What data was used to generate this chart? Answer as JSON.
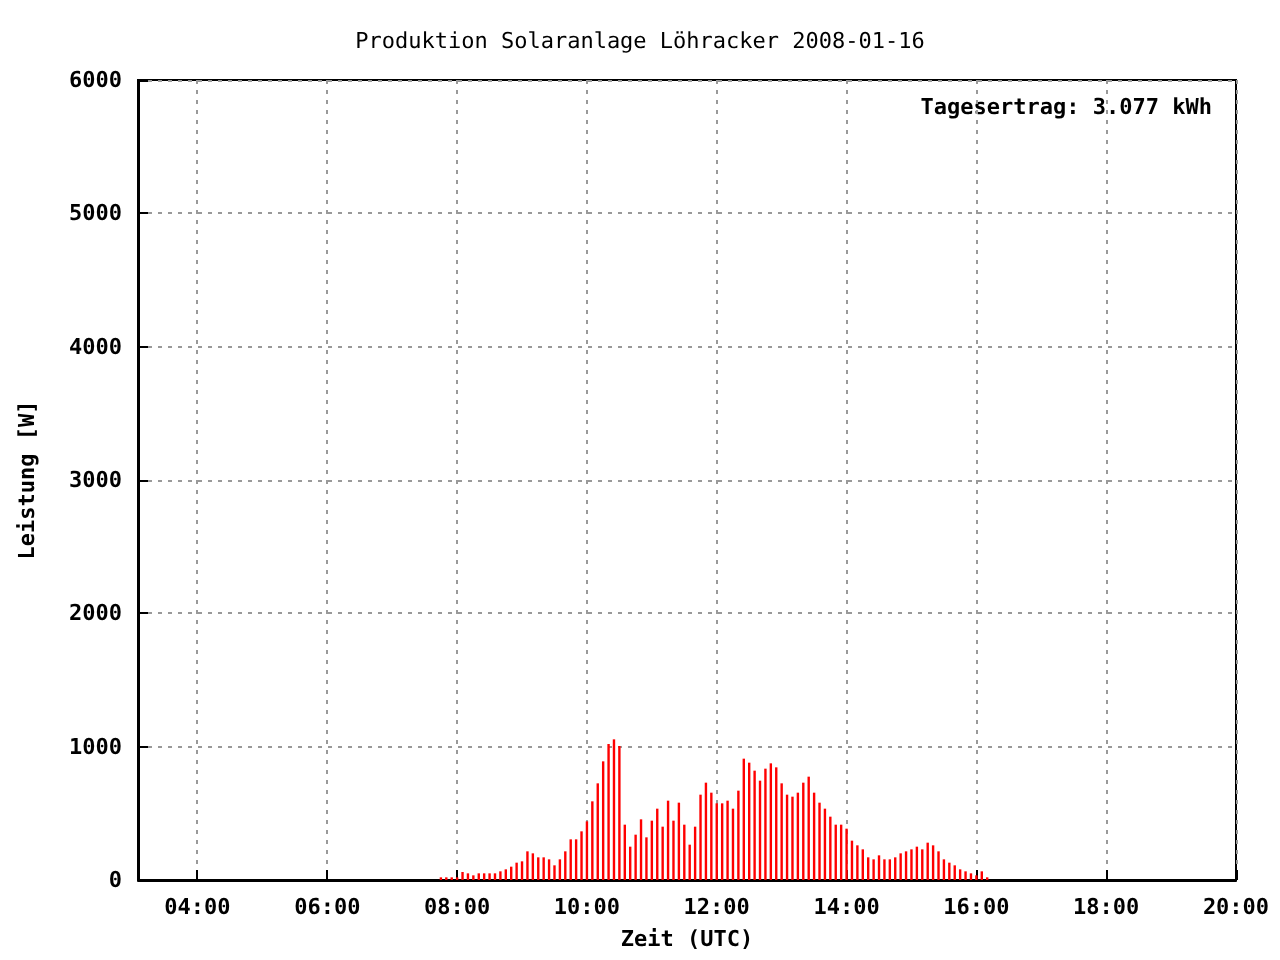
{
  "chart_data": {
    "type": "bar",
    "title": "Produktion Solaranlage Löhracker 2008-01-16",
    "xlabel": "Zeit (UTC)",
    "ylabel": "Leistung [W]",
    "annotations": [
      "Tagesertrag: 3.077 kWh"
    ],
    "x": [
      "2008-01-16T07:45",
      "2008-01-16T07:50",
      "2008-01-16T07:55",
      "2008-01-16T08:00",
      "2008-01-16T08:05",
      "2008-01-16T08:10",
      "2008-01-16T08:15",
      "2008-01-16T08:20",
      "2008-01-16T08:25",
      "2008-01-16T08:30",
      "2008-01-16T08:35",
      "2008-01-16T08:40",
      "2008-01-16T08:45",
      "2008-01-16T08:50",
      "2008-01-16T08:55",
      "2008-01-16T09:00",
      "2008-01-16T09:05",
      "2008-01-16T09:10",
      "2008-01-16T09:15",
      "2008-01-16T09:20",
      "2008-01-16T09:25",
      "2008-01-16T09:30",
      "2008-01-16T09:35",
      "2008-01-16T09:40",
      "2008-01-16T09:45",
      "2008-01-16T09:50",
      "2008-01-16T09:55",
      "2008-01-16T10:00",
      "2008-01-16T10:05",
      "2008-01-16T10:10",
      "2008-01-16T10:15",
      "2008-01-16T10:20",
      "2008-01-16T10:25",
      "2008-01-16T10:30",
      "2008-01-16T10:35",
      "2008-01-16T10:40",
      "2008-01-16T10:45",
      "2008-01-16T10:50",
      "2008-01-16T10:55",
      "2008-01-16T11:00",
      "2008-01-16T11:05",
      "2008-01-16T11:10",
      "2008-01-16T11:15",
      "2008-01-16T11:20",
      "2008-01-16T11:25",
      "2008-01-16T11:30",
      "2008-01-16T11:35",
      "2008-01-16T11:40",
      "2008-01-16T11:45",
      "2008-01-16T11:50",
      "2008-01-16T11:55",
      "2008-01-16T12:00",
      "2008-01-16T12:05",
      "2008-01-16T12:10",
      "2008-01-16T12:15",
      "2008-01-16T12:20",
      "2008-01-16T12:25",
      "2008-01-16T12:30",
      "2008-01-16T12:35",
      "2008-01-16T12:40",
      "2008-01-16T12:45",
      "2008-01-16T12:50",
      "2008-01-16T12:55",
      "2008-01-16T13:00",
      "2008-01-16T13:05",
      "2008-01-16T13:10",
      "2008-01-16T13:15",
      "2008-01-16T13:20",
      "2008-01-16T13:25",
      "2008-01-16T13:30",
      "2008-01-16T13:35",
      "2008-01-16T13:40",
      "2008-01-16T13:45",
      "2008-01-16T13:50",
      "2008-01-16T13:55",
      "2008-01-16T14:00",
      "2008-01-16T14:05",
      "2008-01-16T14:10",
      "2008-01-16T14:15",
      "2008-01-16T14:20",
      "2008-01-16T14:25",
      "2008-01-16T14:30",
      "2008-01-16T14:35",
      "2008-01-16T14:40",
      "2008-01-16T14:45",
      "2008-01-16T14:50",
      "2008-01-16T14:55",
      "2008-01-16T15:00",
      "2008-01-16T15:05",
      "2008-01-16T15:10",
      "2008-01-16T15:15",
      "2008-01-16T15:20",
      "2008-01-16T15:25",
      "2008-01-16T15:30",
      "2008-01-16T15:35",
      "2008-01-16T15:40",
      "2008-01-16T15:45",
      "2008-01-16T15:50",
      "2008-01-16T15:55",
      "2008-01-16T16:00",
      "2008-01-16T16:05",
      "2008-01-16T16:10"
    ],
    "values": [
      20,
      20,
      20,
      20,
      60,
      50,
      35,
      50,
      50,
      50,
      50,
      65,
      80,
      100,
      130,
      140,
      215,
      200,
      170,
      170,
      155,
      110,
      155,
      215,
      305,
      305,
      365,
      440,
      590,
      725,
      890,
      1020,
      1055,
      1005,
      415,
      250,
      340,
      455,
      320,
      445,
      535,
      400,
      595,
      445,
      580,
      415,
      265,
      400,
      640,
      730,
      655,
      575,
      575,
      595,
      535,
      670,
      910,
      880,
      820,
      745,
      835,
      875,
      845,
      725,
      640,
      625,
      655,
      730,
      775,
      655,
      580,
      535,
      475,
      415,
      415,
      385,
      295,
      260,
      230,
      170,
      155,
      185,
      155,
      155,
      170,
      200,
      215,
      230,
      250,
      230,
      280,
      260,
      215,
      155,
      130,
      110,
      80,
      65,
      50,
      35,
      65,
      20
    ],
    "color": "#ff0000",
    "xlim": [
      "2008-01-16T03:05",
      "2008-01-16T20:00"
    ],
    "xticks": [
      {
        "value": "2008-01-16T04:00",
        "label": "04:00"
      },
      {
        "value": "2008-01-16T06:00",
        "label": "06:00"
      },
      {
        "value": "2008-01-16T08:00",
        "label": "08:00"
      },
      {
        "value": "2008-01-16T10:00",
        "label": "10:00"
      },
      {
        "value": "2008-01-16T12:00",
        "label": "12:00"
      },
      {
        "value": "2008-01-16T14:00",
        "label": "14:00"
      },
      {
        "value": "2008-01-16T16:00",
        "label": "16:00"
      },
      {
        "value": "2008-01-16T18:00",
        "label": "18:00"
      },
      {
        "value": "2008-01-16T20:00",
        "label": "20:00"
      }
    ],
    "ylim": [
      0,
      6000
    ],
    "yticks": [
      0,
      1000,
      2000,
      3000,
      4000,
      5000,
      6000
    ],
    "grid": true
  }
}
